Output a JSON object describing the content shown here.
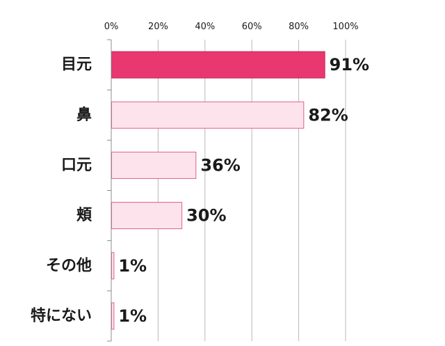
{
  "chart_data": {
    "type": "bar",
    "orientation": "horizontal",
    "categories": [
      "目元",
      "鼻",
      "口元",
      "頬",
      "その他",
      "特にない"
    ],
    "values": [
      91,
      82,
      36,
      30,
      1,
      1
    ],
    "value_labels": [
      "91%",
      "82%",
      "36%",
      "30%",
      "1%",
      "1%"
    ],
    "x_ticks": [
      "0%",
      "20%",
      "40%",
      "60%",
      "80%",
      "100%"
    ],
    "xlim": [
      0,
      100
    ],
    "x_axis_position": "top",
    "grid": true,
    "legend": "none",
    "title": "",
    "xlabel": "",
    "ylabel": ""
  },
  "colors": {
    "highlight_fill": "#e8386f",
    "highlight_stroke": "#c4245a",
    "bar_fill": "#fde3ec",
    "bar_stroke": "#e0608c",
    "grid": "#b8b8b8",
    "axis": "#8c8c8c",
    "text": "#1a1a1a"
  }
}
